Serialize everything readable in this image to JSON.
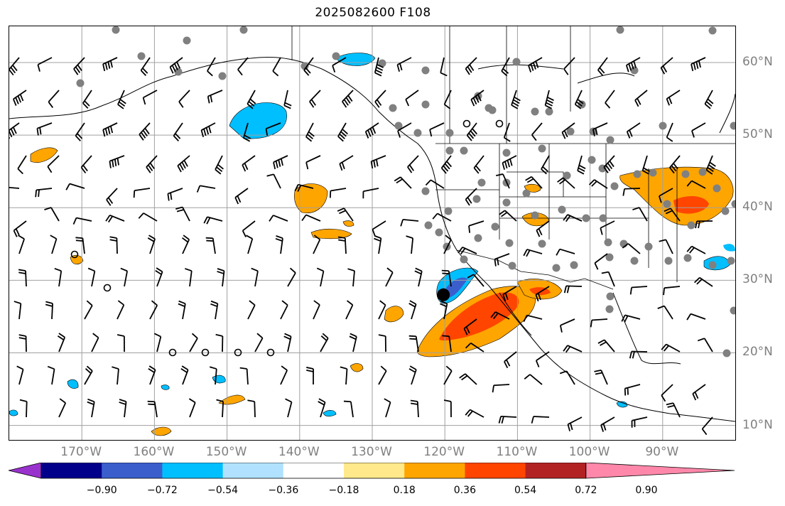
{
  "title": "2025082600 F108",
  "lon_labels": [
    "170°W",
    "160°W",
    "150°W",
    "140°W",
    "130°W",
    "120°W",
    "110°W",
    "100°W",
    "90°W"
  ],
  "lat_labels": [
    "60°N",
    "50°N",
    "40°N",
    "30°N",
    "20°N",
    "10°N"
  ],
  "colorbar": {
    "labels": [
      "−0.90",
      "−0.72",
      "−0.54",
      "−0.36",
      "−0.18",
      "0.18",
      "0.36",
      "0.54",
      "0.72",
      "0.90"
    ],
    "colors": [
      "#9932cc",
      "#00008b",
      "#3a5fcd",
      "#00bfff",
      "#b0e2ff",
      "#ffffff",
      "#ffe98a",
      "#ffa500",
      "#ff4500",
      "#b22222",
      "#ff88aa"
    ]
  },
  "map": {
    "extent": {
      "lon": [
        -180,
        -80
      ],
      "lat": [
        8,
        65
      ]
    },
    "marker_lonlat": [
      -120.2,
      28.0
    ]
  }
}
